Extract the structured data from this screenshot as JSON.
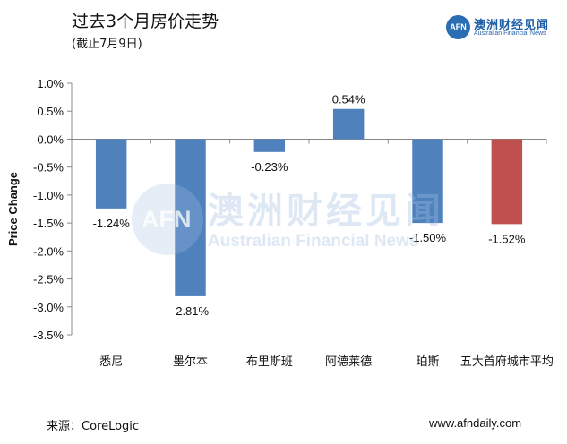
{
  "header": {
    "title": "过去3个月房价走势",
    "subtitle": "(截止7月9日)"
  },
  "brand": {
    "logo_text": "AFN",
    "name": "澳洲财经见闻",
    "tagline": "Australian Financial News"
  },
  "watermark": {
    "logo_text": "AFN",
    "name": "澳洲财经见闻",
    "tagline": "Australian Financial News"
  },
  "footer": {
    "source": "来源：CoreLogic",
    "url": "www.afndaily.com"
  },
  "colors": {
    "bar_default": "#4f81bd",
    "bar_highlight": "#c0504d",
    "axis": "#888888",
    "brand": "#1f5fa8"
  },
  "chart_data": {
    "type": "bar",
    "categories": [
      "悉尼",
      "墨尔本",
      "布里斯班",
      "阿德莱德",
      "珀斯",
      "五大首府城市平均"
    ],
    "values": [
      -1.24,
      -2.81,
      -0.23,
      0.54,
      -1.5,
      -1.52
    ],
    "data_labels": [
      "-1.24%",
      "-2.81%",
      "-0.23%",
      "0.54%",
      "-1.50%",
      "-1.52%"
    ],
    "highlight_index": 5,
    "ylabel": "Price Change",
    "xlabel": "",
    "ylim": [
      -3.5,
      1.0
    ],
    "y_ticks": [
      1.0,
      0.5,
      0.0,
      -0.5,
      -1.0,
      -1.5,
      -2.0,
      -2.5,
      -3.0,
      -3.5
    ],
    "y_tick_labels": [
      "1.0%",
      "0.5%",
      "0.0%",
      "-0.5%",
      "-1.0%",
      "-1.5%",
      "-2.0%",
      "-2.5%",
      "-3.0%",
      "-3.5%"
    ],
    "grid": false,
    "legend": "none"
  }
}
